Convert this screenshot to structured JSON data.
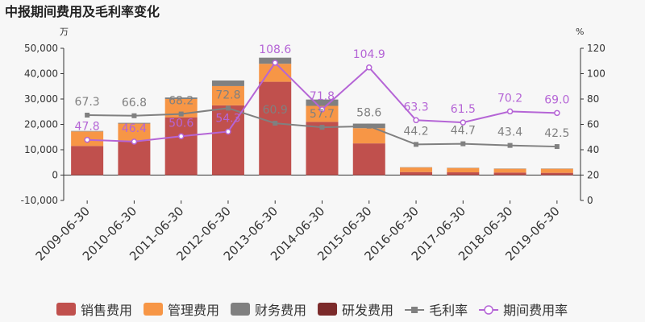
{
  "chart_data": {
    "type": "bar",
    "title": "中报期间费用及毛利率变化",
    "left_unit": "万",
    "right_unit": "%",
    "categories": [
      "2009-06-30",
      "2010-06-30",
      "2011-06-30",
      "2012-06-30",
      "2013-06-30",
      "2014-06-30",
      "2015-06-30",
      "2016-06-30",
      "2017-06-30",
      "2018-06-30",
      "2019-06-30"
    ],
    "ylim_left": [
      -10000,
      50000
    ],
    "yticks_left": [
      "-10,000",
      "0",
      "10,000",
      "20,000",
      "30,000",
      "40,000",
      "50,000"
    ],
    "ylim_right": [
      0,
      120
    ],
    "yticks_right": [
      "0",
      "20",
      "40",
      "60",
      "80",
      "100",
      "120"
    ],
    "series": [
      {
        "name": "销售费用",
        "kind": "bar",
        "color": "#c0504d",
        "values": [
          11500,
          13500,
          22800,
          27500,
          36800,
          21000,
          12500,
          1200,
          1100,
          1000,
          900
        ]
      },
      {
        "name": "管理费用",
        "kind": "bar",
        "color": "#f79646",
        "values": [
          5700,
          6800,
          7200,
          7600,
          7100,
          6300,
          6000,
          1800,
          1700,
          1500,
          1600
        ]
      },
      {
        "name": "财务费用",
        "kind": "bar",
        "color": "#808080",
        "values": [
          200,
          300,
          600,
          2200,
          2400,
          2500,
          1800,
          100,
          100,
          100,
          100
        ]
      },
      {
        "name": "研发费用",
        "kind": "bar",
        "color": "#7b2a2a",
        "values": [
          0,
          0,
          0,
          0,
          0,
          0,
          0,
          0,
          0,
          0,
          0
        ]
      },
      {
        "name": "毛利率",
        "kind": "line",
        "marker": "square",
        "color": "#808080",
        "values": [
          67.3,
          66.8,
          68.2,
          72.8,
          60.9,
          57.7,
          58.6,
          44.2,
          44.7,
          43.4,
          42.5
        ],
        "labels": [
          "67.3",
          "66.8",
          "68.2",
          "72.8",
          "60.9",
          "57.7",
          "58.6",
          "44.2",
          "44.7",
          "43.4",
          "42.5"
        ]
      },
      {
        "name": "期间费用率",
        "kind": "line",
        "marker": "circle",
        "color": "#b565d6",
        "values": [
          47.8,
          46.4,
          50.6,
          54.3,
          108.6,
          71.8,
          104.9,
          63.3,
          61.5,
          70.2,
          69.0
        ],
        "labels": [
          "47.8",
          "46.4",
          "50.6",
          "54.3",
          "108.6",
          "71.8",
          "104.9",
          "63.3",
          "61.5",
          "70.2",
          "69.0"
        ]
      }
    ],
    "legend_position": "bottom",
    "grid": false
  }
}
